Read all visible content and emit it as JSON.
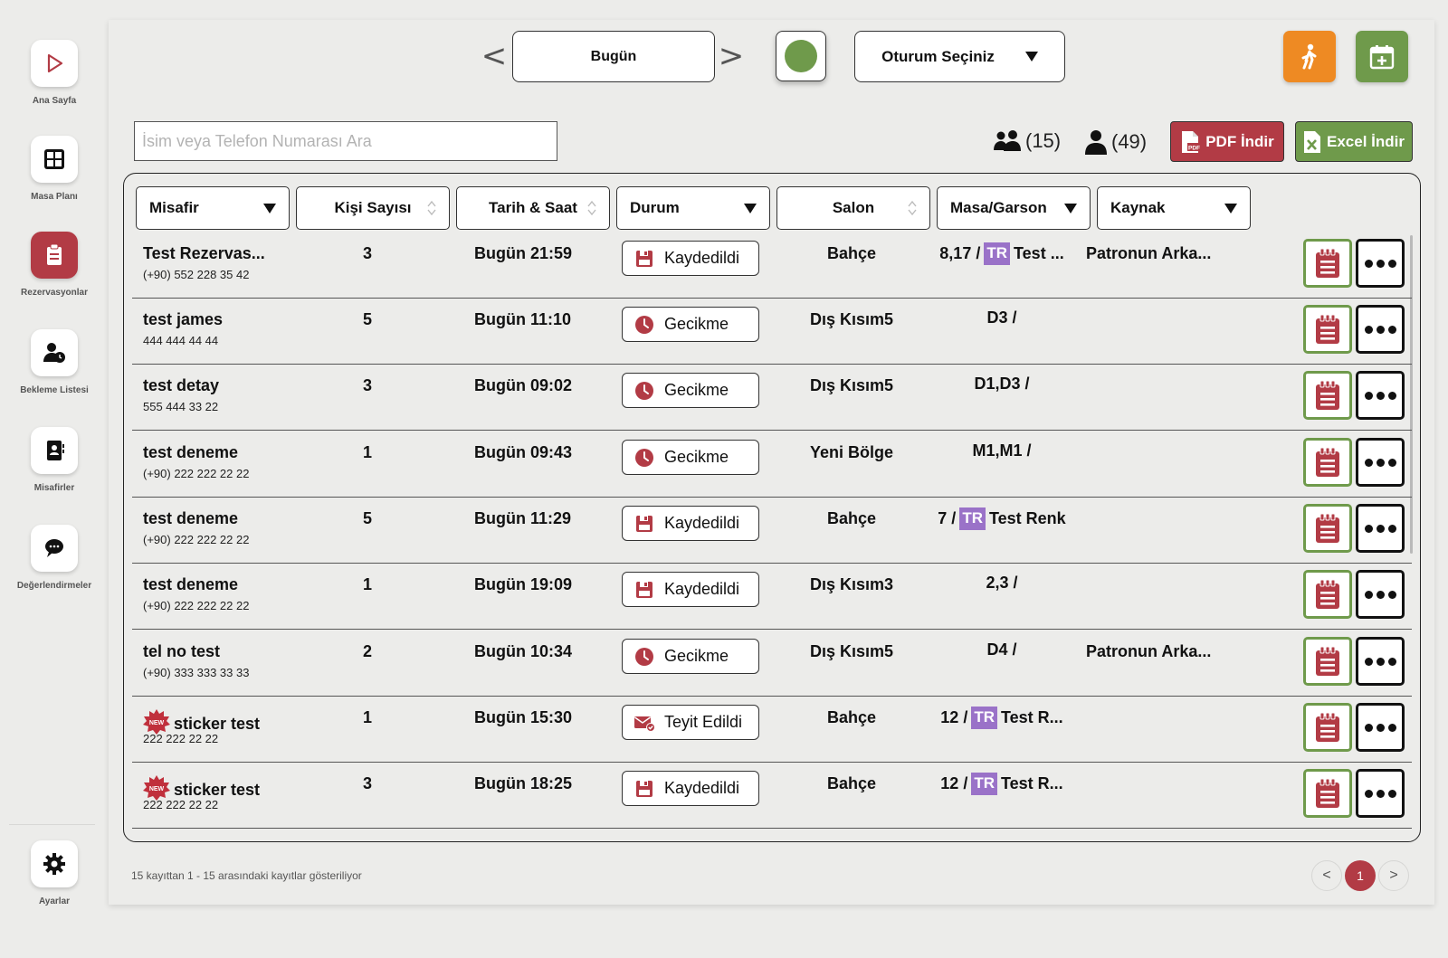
{
  "sidebar": {
    "items": [
      {
        "label": "Ana Sayfa",
        "icon": "play-icon"
      },
      {
        "label": "Masa Planı",
        "icon": "grid-icon"
      },
      {
        "label": "Rezervasyonlar",
        "icon": "clipboard-icon",
        "active": true
      },
      {
        "label": "Bekleme Listesi",
        "icon": "user-clock-icon"
      },
      {
        "label": "Misafirler",
        "icon": "contact-book-icon"
      },
      {
        "label": "Değerlendirmeler",
        "icon": "chat-bubble-icon"
      }
    ],
    "settings": {
      "label": "Ayarlar",
      "icon": "gear-icon"
    }
  },
  "topbar": {
    "prev_arrow": "<",
    "next_arrow": ">",
    "date_label": "Bugün",
    "session_label": "Oturum Seçiniz",
    "status_color": "#6f9a4b",
    "walk_in_icon": "walking-person-icon",
    "add_reservation_icon": "calendar-plus-icon"
  },
  "toolbar": {
    "search_placeholder": "İsim veya Telefon Numarası Ara",
    "group_count": "(15)",
    "person_count": "(49)",
    "pdf_label": "PDF İndir",
    "excel_label": "Excel İndir"
  },
  "table": {
    "headers": {
      "guest": "Misafir",
      "people": "Kişi Sayısı",
      "datetime": "Tarih & Saat",
      "status": "Durum",
      "salon": "Salon",
      "table_waiter": "Masa/Garson",
      "source": "Kaynak"
    },
    "rows": [
      {
        "name": "Test Rezervas...",
        "phone": "(+90) 552 228 35 42",
        "people": "3",
        "datetime": "Bugün 21:59",
        "status": "Kaydedildi",
        "status_icon": "save-icon",
        "salon": "Bahçe",
        "masa": "8,17 /",
        "tr": "TR",
        "waiter": "Test ...",
        "source": "Patronun Arka...",
        "is_new": false
      },
      {
        "name": "test james",
        "phone": "444 444 44 44",
        "people": "5",
        "datetime": "Bugün 11:10",
        "status": "Gecikme",
        "status_icon": "clock-icon",
        "salon": "Dış Kısım5",
        "masa": "D3 /",
        "tr": "",
        "waiter": "",
        "source": "",
        "is_new": false
      },
      {
        "name": "test detay",
        "phone": "555 444 33 22",
        "people": "3",
        "datetime": "Bugün 09:02",
        "status": "Gecikme",
        "status_icon": "clock-icon",
        "salon": "Dış Kısım5",
        "masa": "D1,D3 /",
        "tr": "",
        "waiter": "",
        "source": "",
        "is_new": false
      },
      {
        "name": "test deneme",
        "phone": "(+90) 222 222 22 22",
        "people": "1",
        "datetime": "Bugün 09:43",
        "status": "Gecikme",
        "status_icon": "clock-icon",
        "salon": "Yeni Bölge",
        "masa": "M1,M1 /",
        "tr": "",
        "waiter": "",
        "source": "",
        "is_new": false
      },
      {
        "name": "test deneme",
        "phone": "(+90) 222 222 22 22",
        "people": "5",
        "datetime": "Bugün 11:29",
        "status": "Kaydedildi",
        "status_icon": "save-icon",
        "salon": "Bahçe",
        "masa": "7 /",
        "tr": "TR",
        "waiter": "Test Renk",
        "source": "",
        "is_new": false
      },
      {
        "name": "test deneme",
        "phone": "(+90) 222 222 22 22",
        "people": "1",
        "datetime": "Bugün 19:09",
        "status": "Kaydedildi",
        "status_icon": "save-icon",
        "salon": "Dış Kısım3",
        "masa": "2,3 /",
        "tr": "",
        "waiter": "",
        "source": "",
        "is_new": false
      },
      {
        "name": "tel no test",
        "phone": "(+90) 333 333 33 33",
        "people": "2",
        "datetime": "Bugün 10:34",
        "status": "Gecikme",
        "status_icon": "clock-icon",
        "salon": "Dış Kısım5",
        "masa": "D4 /",
        "tr": "",
        "waiter": "",
        "source": "Patronun Arka...",
        "is_new": false
      },
      {
        "name": "sticker test",
        "phone": "222 222 22 22",
        "people": "1",
        "datetime": "Bugün 15:30",
        "status": "Teyit Edildi",
        "status_icon": "envelope-check-icon",
        "salon": "Bahçe",
        "masa": "12 /",
        "tr": "TR",
        "waiter": "Test R...",
        "source": "",
        "is_new": true
      },
      {
        "name": "sticker test",
        "phone": "222 222 22 22",
        "people": "3",
        "datetime": "Bugün 18:25",
        "status": "Kaydedildi",
        "status_icon": "save-icon",
        "salon": "Bahçe",
        "masa": "12 /",
        "tr": "TR",
        "waiter": "Test R...",
        "source": "",
        "is_new": true
      }
    ]
  },
  "footer": {
    "info": "15 kayıttan 1 - 15 arasındaki kayıtlar gösteriliyor",
    "prev": "<",
    "page": "1",
    "next": ">"
  },
  "colors": {
    "brand_red": "#b23b45",
    "brand_green": "#6f9a4b",
    "walk_in_orange": "#ee8a23",
    "tr_badge": "#9a72c8"
  }
}
